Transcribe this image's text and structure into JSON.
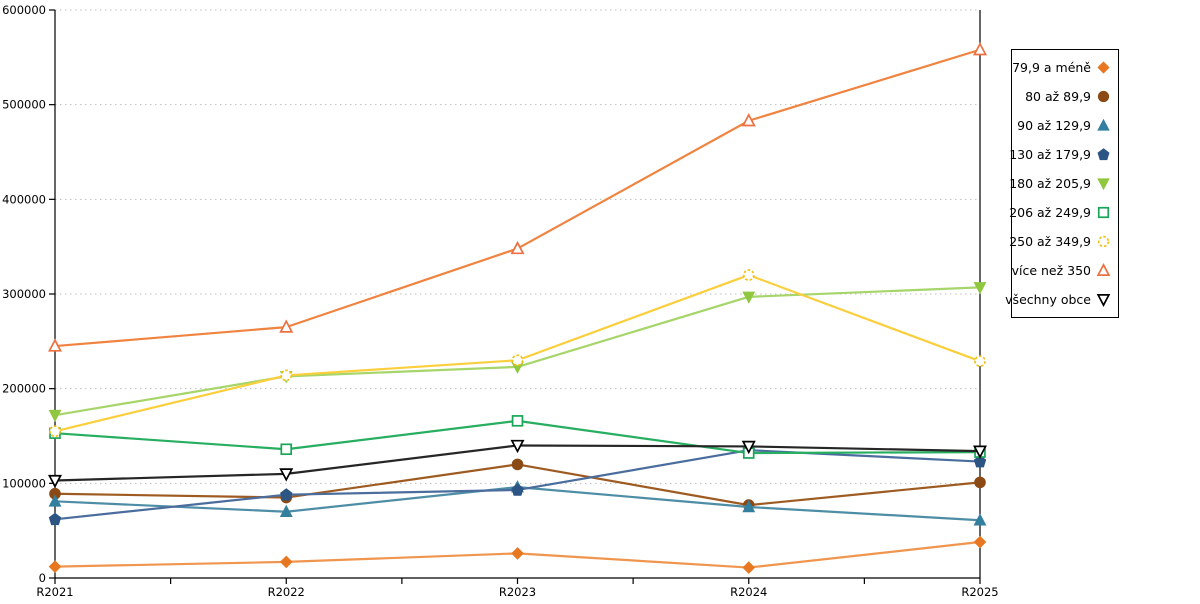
{
  "chart_data": {
    "type": "line",
    "title": "",
    "xlabel": "",
    "ylabel": "",
    "categories": [
      "R2021",
      "R2022",
      "R2023",
      "R2024",
      "R2025"
    ],
    "ylim": [
      0,
      600000
    ],
    "ytick_step": 100000,
    "y_tick_labels": [
      "0",
      "100000",
      "200000",
      "300000",
      "400000",
      "500000",
      "600000"
    ],
    "grid": "horizontal-dotted",
    "legend_position": "right",
    "series": [
      {
        "name": "79,9 a méně",
        "marker": "diamond",
        "fill": "filled",
        "color": "#E87722",
        "line_color": "#F0954E",
        "values": [
          12000,
          17000,
          26000,
          11000,
          38000
        ]
      },
      {
        "name": "80 až 89,9",
        "marker": "circle",
        "fill": "filled",
        "color": "#8B4A15",
        "line_color": "#9E5B21",
        "values": [
          89000,
          85000,
          120000,
          77000,
          101000
        ]
      },
      {
        "name": "90 až 129,9",
        "marker": "triangle-up",
        "fill": "filled",
        "color": "#337F9E",
        "line_color": "#4E8DA6",
        "values": [
          81000,
          70000,
          96000,
          75000,
          61000
        ]
      },
      {
        "name": "130 až 179,9",
        "marker": "pentagon",
        "fill": "filled",
        "color": "#2D5584",
        "line_color": "#4A6D9E",
        "values": [
          62000,
          88000,
          93000,
          135000,
          123000
        ]
      },
      {
        "name": "180 až 205,9",
        "marker": "triangle-down",
        "fill": "filled",
        "color": "#8FC73E",
        "line_color": "#A6D56A",
        "values": [
          172000,
          213000,
          223000,
          297000,
          307000
        ]
      },
      {
        "name": "206 až 249,9",
        "marker": "square",
        "fill": "open",
        "color": "#18A558",
        "line_color": "#27AE60",
        "values": [
          153000,
          136000,
          166000,
          132000,
          133000
        ]
      },
      {
        "name": "250 až 349,9",
        "marker": "circle-dashed",
        "fill": "open",
        "color": "#F2C014",
        "line_color": "#FBCE3C",
        "values": [
          155000,
          214000,
          230000,
          320000,
          229000
        ]
      },
      {
        "name": "více než 350",
        "marker": "triangle-up",
        "fill": "open",
        "color": "#ED7040",
        "line_color": "#F0833F",
        "values": [
          245000,
          265000,
          348000,
          483000,
          558000
        ]
      },
      {
        "name": "všechny obce",
        "marker": "triangle-down",
        "fill": "open",
        "color": "#000000",
        "line_color": "#262626",
        "values": [
          103000,
          110000,
          140000,
          139000,
          134000
        ]
      }
    ],
    "colors": {
      "gridline": "#BFBFBF",
      "axis": "#000000",
      "background": "#FFFFFF"
    }
  }
}
